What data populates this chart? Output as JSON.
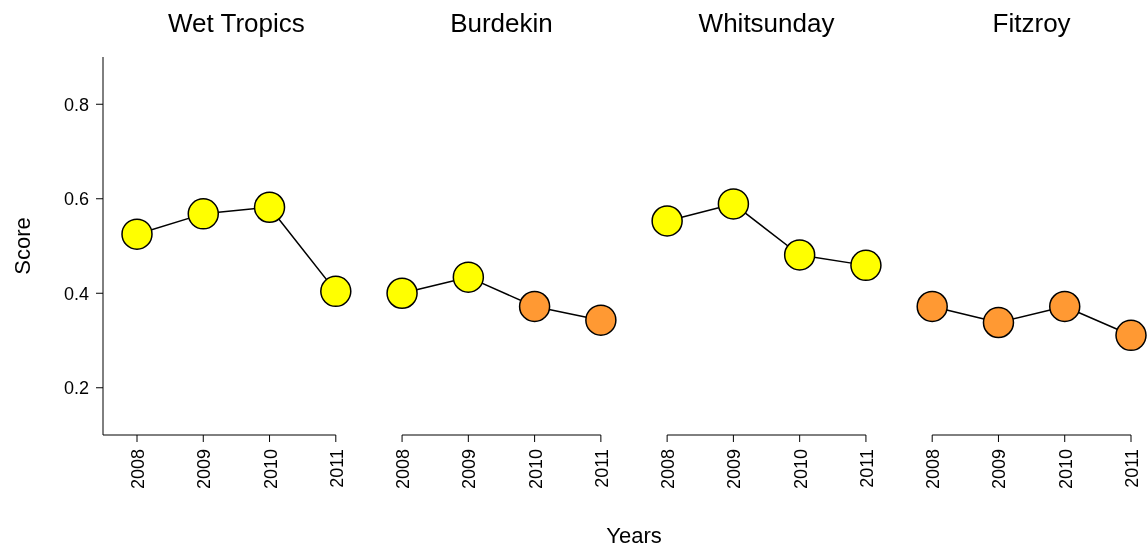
{
  "chart_data": {
    "type": "line",
    "ylabel": "Score",
    "xlabel": "Years",
    "annotations": [
      "Wet Tropics",
      "Burdekin",
      "Whitsunday",
      "Fitzroy"
    ],
    "categories": [
      "2008",
      "2009",
      "2010",
      "2011",
      "2008",
      "2009",
      "2010",
      "2011",
      "2008",
      "2009",
      "2010",
      "2011",
      "2008",
      "2009",
      "2010",
      "2011"
    ],
    "series": [
      {
        "color": "#000000",
        "colors": [
          "#ffff00",
          "#ffff00",
          "#ffff00",
          "#ffff00",
          null,
          null,
          null,
          null,
          null,
          null,
          null,
          null,
          null,
          null,
          null,
          null
        ],
        "values": [
          0.525,
          0.568,
          0.582,
          0.404,
          null,
          null,
          null,
          null,
          null,
          null,
          null,
          null,
          null,
          null,
          null,
          null
        ]
      },
      {
        "color": "#000000",
        "colors": [
          null,
          null,
          null,
          null,
          "#ffff00",
          "#ffff00",
          "#ff9933",
          "#ff9933",
          null,
          null,
          null,
          null,
          null,
          null,
          null,
          null
        ],
        "values": [
          null,
          null,
          null,
          null,
          0.4,
          0.434,
          0.372,
          0.343,
          null,
          null,
          null,
          null,
          null,
          null,
          null,
          null
        ]
      },
      {
        "color": "#000000",
        "colors": [
          null,
          null,
          null,
          null,
          null,
          null,
          null,
          null,
          "#ffff00",
          "#ffff00",
          "#ffff00",
          "#ffff00",
          null,
          null,
          null,
          null
        ],
        "values": [
          null,
          null,
          null,
          null,
          null,
          null,
          null,
          null,
          0.553,
          0.589,
          0.481,
          0.459,
          null,
          null,
          null,
          null
        ]
      },
      {
        "color": "#000000",
        "colors": [
          null,
          null,
          null,
          null,
          null,
          null,
          null,
          null,
          null,
          null,
          null,
          null,
          "#ff9933",
          "#ff9933",
          "#ff9933",
          "#ff9933"
        ],
        "values": [
          null,
          null,
          null,
          null,
          null,
          null,
          null,
          null,
          null,
          null,
          null,
          null,
          0.372,
          0.338,
          0.372,
          0.311
        ]
      }
    ],
    "ylim": [
      0.1,
      0.9
    ],
    "yticks": [
      0.2,
      0.4,
      0.6,
      0.8
    ],
    "marker": "circle"
  }
}
